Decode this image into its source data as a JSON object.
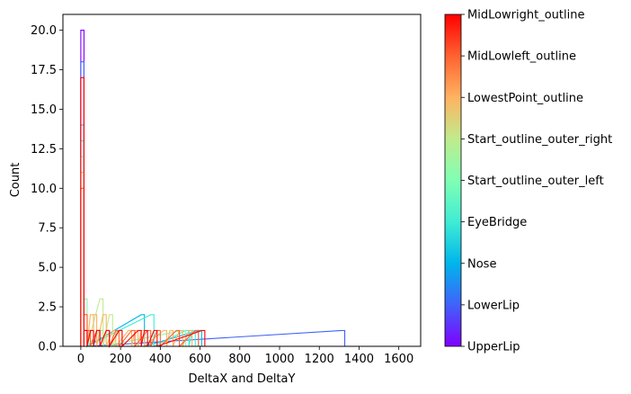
{
  "chart_data": {
    "type": "histogram",
    "xlabel": "DeltaX and DeltaY",
    "ylabel": "Count",
    "xlim": [
      -90,
      1710
    ],
    "ylim": [
      0,
      21
    ],
    "xticks": [
      0,
      200,
      400,
      600,
      800,
      1000,
      1200,
      1400,
      1600
    ],
    "yticks": [
      0.0,
      2.5,
      5.0,
      7.5,
      10.0,
      12.5,
      15.0,
      17.5,
      20.0
    ],
    "bin_width": 16,
    "histtype": "step",
    "colorbar": {
      "colormap": "rainbow",
      "labels": [
        "UpperLip",
        "LowerLip",
        "Nose",
        "EyeBridge",
        "Start_outline_outer_left",
        "Start_outline_outer_right",
        "LowestPoint_outline",
        "MidLowleft_outline",
        "MidLowright_outline"
      ],
      "colors": [
        "#8000ff",
        "#4062fa",
        "#00b5eb",
        "#40ecd4",
        "#80ffb4",
        "#c0eb8d",
        "#ffb360",
        "#ff6230",
        "#ff0000"
      ]
    },
    "series": [
      {
        "name": "UpperLip",
        "color": "#8000ff",
        "x": [
          0,
          16
        ],
        "values": [
          20,
          1
        ]
      },
      {
        "name": "LowerLip",
        "color": "#4062fa",
        "x": [
          0,
          16,
          1312
        ],
        "values": [
          18,
          1,
          1
        ]
      },
      {
        "name": "Nose",
        "color": "#00b5eb",
        "x": [
          0,
          16,
          304,
          592
        ],
        "values": [
          14,
          1,
          2,
          1
        ]
      },
      {
        "name": "EyeBridge",
        "color": "#40ecd4",
        "x": [
          0,
          16,
          352,
          528,
          560,
          576
        ],
        "values": [
          13,
          1,
          2,
          1,
          1,
          1
        ]
      },
      {
        "name": "Start_outline_outer_left",
        "color": "#80ffb4",
        "x": [
          0,
          16,
          96,
          512
        ],
        "values": [
          12,
          3,
          1,
          1
        ]
      },
      {
        "name": "Start_outline_outer_right",
        "color": "#c0eb8d",
        "x": [
          0,
          16,
          96,
          144,
          192
        ],
        "values": [
          11,
          2,
          3,
          2,
          1
        ]
      },
      {
        "name": "LowestPoint_outline",
        "color": "#ffb360",
        "x": [
          0,
          16,
          48,
          64,
          112,
          160,
          240,
          272,
          304,
          416,
          448,
          496,
          544
        ],
        "values": [
          11,
          2,
          2,
          2,
          2,
          1,
          1,
          1,
          1,
          1,
          1,
          1,
          1
        ]
      },
      {
        "name": "MidLowleft_outline",
        "color": "#ff6230",
        "x": [
          0,
          16,
          32,
          80,
          128,
          176,
          256,
          336,
          384,
          480,
          576
        ],
        "values": [
          10,
          2,
          1,
          1,
          1,
          1,
          1,
          1,
          1,
          1,
          1
        ]
      },
      {
        "name": "MidLowright_outline",
        "color": "#ff0000",
        "x": [
          0,
          16,
          48,
          80,
          128,
          192,
          288,
          320,
          368,
          608
        ],
        "values": [
          17,
          1,
          1,
          1,
          1,
          1,
          1,
          1,
          1,
          1
        ],
        "xmax": 1620
      }
    ]
  }
}
